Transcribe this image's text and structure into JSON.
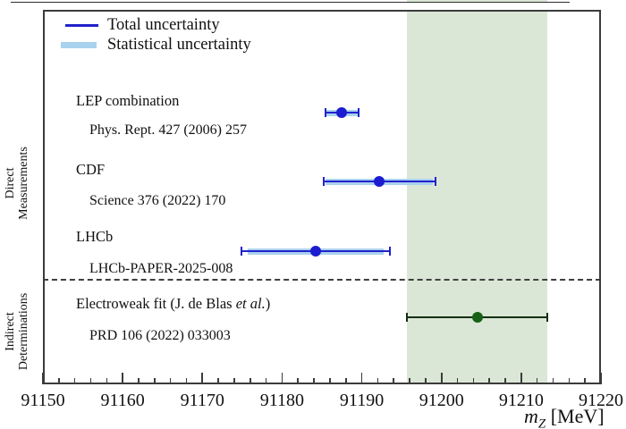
{
  "figure": {
    "axis_title": {
      "symbol": "m",
      "subscript": "Z",
      "unit": " [MeV]"
    },
    "sections": {
      "direct": {
        "line1": "Direct",
        "line2": "Measurements"
      },
      "indirect": {
        "line1": "Indirect",
        "line2": "Determinations"
      }
    }
  },
  "chart_data": {
    "type": "scatter",
    "title": "",
    "xlabel": "m_Z [MeV]",
    "x_axis": {
      "min": 91150,
      "max": 91220,
      "major_step": 10,
      "minor_step": 2,
      "tick_labels": [
        "91150",
        "91160",
        "91170",
        "91180",
        "91190",
        "91200",
        "91210",
        "91220"
      ]
    },
    "shaded_band": {
      "min": 91195.7,
      "max": 91213.3,
      "color": "#dbe7d6"
    },
    "legend": [
      {
        "style": "line",
        "label": "Total uncertainty",
        "color": "#2222cc"
      },
      {
        "style": "band",
        "label": "Statistical uncertainty",
        "color": "#a9d2ee"
      }
    ],
    "measurements": [
      {
        "group": "Direct Measurements",
        "label": "LEP combination",
        "reference": "Phys. Rept. 427 (2006) 257",
        "value": 91187.5,
        "total_uncertainty": 2.1,
        "stat_uncertainty": 2.1,
        "line_color": "#2222cc",
        "marker_color": "#1c1cd0",
        "stat_color": "#a9d2ee"
      },
      {
        "group": "Direct Measurements",
        "label": "CDF",
        "reference": "Science 376 (2022) 170",
        "value": 91192.2,
        "total_uncertainty": 7.0,
        "stat_uncertainty": 6.7,
        "line_color": "#2222cc",
        "marker_color": "#1c1cd0",
        "stat_color": "#a9d2ee"
      },
      {
        "group": "Direct Measurements",
        "label": "LHCb",
        "reference": "LHCb-PAPER-2025-008",
        "value": 91184.2,
        "total_uncertainty": 9.3,
        "stat_uncertainty": 8.5,
        "line_color": "#2222cc",
        "marker_color": "#1c1cd0",
        "stat_color": "#a9d2ee"
      },
      {
        "group": "Indirect Determinations",
        "label_prefix": "Electroweak fit (J. de Blas ",
        "label_italic": "et al.",
        "label_suffix": ")",
        "reference": "PRD 106 (2022) 033003",
        "value": 91204.5,
        "total_uncertainty": 8.8,
        "stat_uncertainty": null,
        "line_color": "#122f12",
        "marker_color": "#166116",
        "stat_color": null
      }
    ],
    "colors": {
      "frame": "#3b3b3b",
      "band": "#dbe7d6",
      "dashed_separator": "#3f3f3f"
    }
  }
}
